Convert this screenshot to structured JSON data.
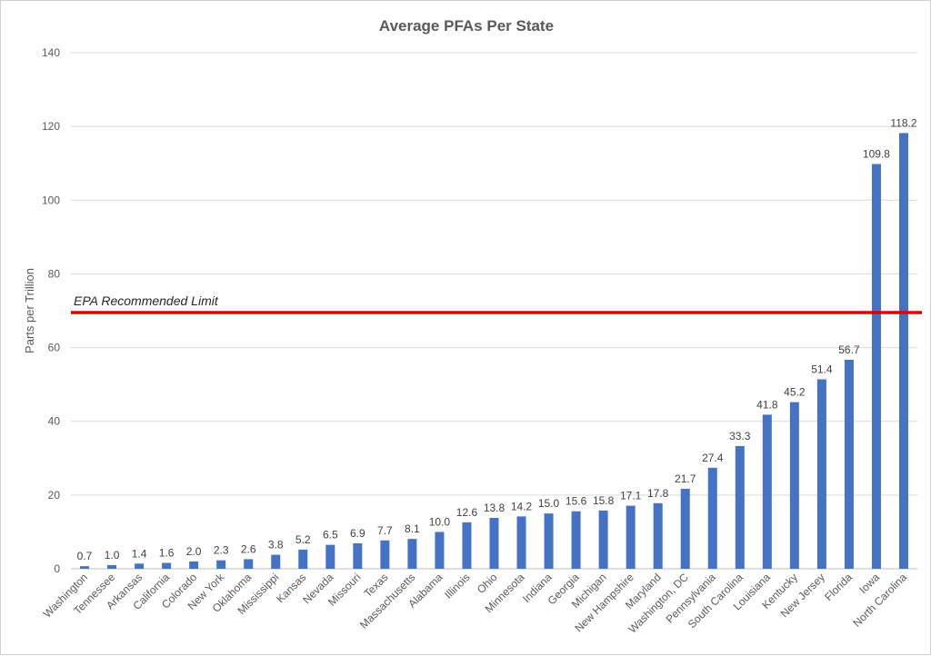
{
  "chart_data": {
    "type": "bar",
    "title": "Average PFAs Per State",
    "xlabel": "",
    "ylabel": "Parts per Trillion",
    "ylim": [
      0,
      140
    ],
    "yticks": [
      0,
      20,
      40,
      60,
      80,
      100,
      120,
      140
    ],
    "grid": true,
    "categories": [
      "Washington",
      "Tennessee",
      "Arkansas",
      "California",
      "Colorado",
      "New York",
      "Oklahoma",
      "Mississippi",
      "Kansas",
      "Nevada",
      "Missouri",
      "Texas",
      "Massachusetts",
      "Alabama",
      "Illinois",
      "Ohio",
      "Minnesota",
      "Indiana",
      "Georgia",
      "Michigan",
      "New Hampshire",
      "Maryland",
      "Washington, DC",
      "Pennsylvania",
      "South Carolina",
      "Louisiana",
      "Kentucky",
      "New Jersey",
      "Florida",
      "Iowa",
      "North Carolina"
    ],
    "values": [
      0.7,
      1.0,
      1.4,
      1.6,
      2.0,
      2.3,
      2.6,
      3.8,
      5.2,
      6.5,
      6.9,
      7.7,
      8.1,
      10.0,
      12.6,
      13.8,
      14.2,
      15.0,
      15.6,
      15.8,
      17.1,
      17.8,
      21.7,
      27.4,
      33.3,
      41.8,
      45.2,
      51.4,
      56.7,
      109.8,
      118.2
    ],
    "data_labels": [
      "0.7",
      "1.0",
      "1.4",
      "1.6",
      "2.0",
      "2.3",
      "2.6",
      "3.8",
      "5.2",
      "6.5",
      "6.9",
      "7.7",
      "8.1",
      "10.0",
      "12.6",
      "13.8",
      "14.2",
      "15.0",
      "15.6",
      "15.8",
      "17.1",
      "17.8",
      "21.7",
      "27.4",
      "33.3",
      "41.8",
      "45.2",
      "51.4",
      "56.7",
      "109.8",
      "118.2"
    ],
    "bar_color": "#4472c4",
    "reference_line": {
      "label": "EPA Recommended Limit",
      "value": 69.5,
      "color": "#e00000"
    }
  }
}
